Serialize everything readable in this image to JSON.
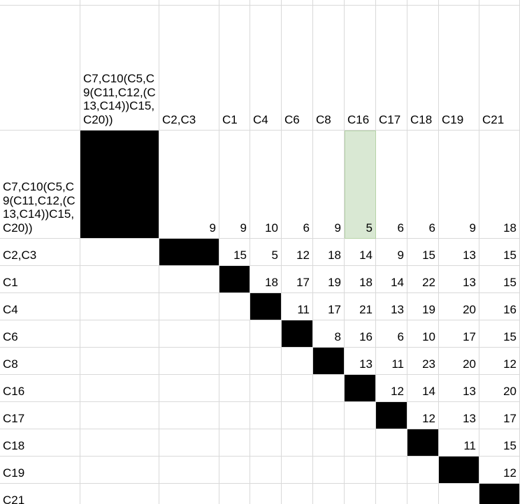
{
  "table": {
    "columns": [
      "C7,C10(C5,C9(C11,C12,(C13,C14))C15,C20))",
      "C2,C3",
      "C1",
      "C4",
      "C6",
      "C8",
      "C16",
      "C17",
      "C18",
      "C19",
      "C21"
    ],
    "rows": [
      {
        "label": "C7,C10(C5,C9(C11,C12,(C13,C14))C15,C20))",
        "cells": [
          null,
          9,
          9,
          10,
          6,
          9,
          5,
          6,
          6,
          9,
          18
        ]
      },
      {
        "label": "C2,C3",
        "cells": [
          null,
          null,
          15,
          5,
          12,
          18,
          14,
          9,
          15,
          13,
          15
        ]
      },
      {
        "label": "C1",
        "cells": [
          null,
          null,
          null,
          18,
          17,
          19,
          18,
          14,
          22,
          13,
          15
        ]
      },
      {
        "label": "C4",
        "cells": [
          null,
          null,
          null,
          null,
          11,
          17,
          21,
          13,
          19,
          20,
          16
        ]
      },
      {
        "label": "C6",
        "cells": [
          null,
          null,
          null,
          null,
          null,
          8,
          16,
          6,
          10,
          17,
          15
        ]
      },
      {
        "label": "C8",
        "cells": [
          null,
          null,
          null,
          null,
          null,
          null,
          13,
          11,
          23,
          20,
          12
        ]
      },
      {
        "label": "C16",
        "cells": [
          null,
          null,
          null,
          null,
          null,
          null,
          null,
          12,
          14,
          13,
          20
        ]
      },
      {
        "label": "C17",
        "cells": [
          null,
          null,
          null,
          null,
          null,
          null,
          null,
          null,
          12,
          13,
          17
        ]
      },
      {
        "label": "C18",
        "cells": [
          null,
          null,
          null,
          null,
          null,
          null,
          null,
          null,
          null,
          11,
          15
        ]
      },
      {
        "label": "C19",
        "cells": [
          null,
          null,
          null,
          null,
          null,
          null,
          null,
          null,
          null,
          null,
          12
        ]
      },
      {
        "label": "C21",
        "cells": [
          null,
          null,
          null,
          null,
          null,
          null,
          null,
          null,
          null,
          null,
          null
        ]
      }
    ]
  }
}
